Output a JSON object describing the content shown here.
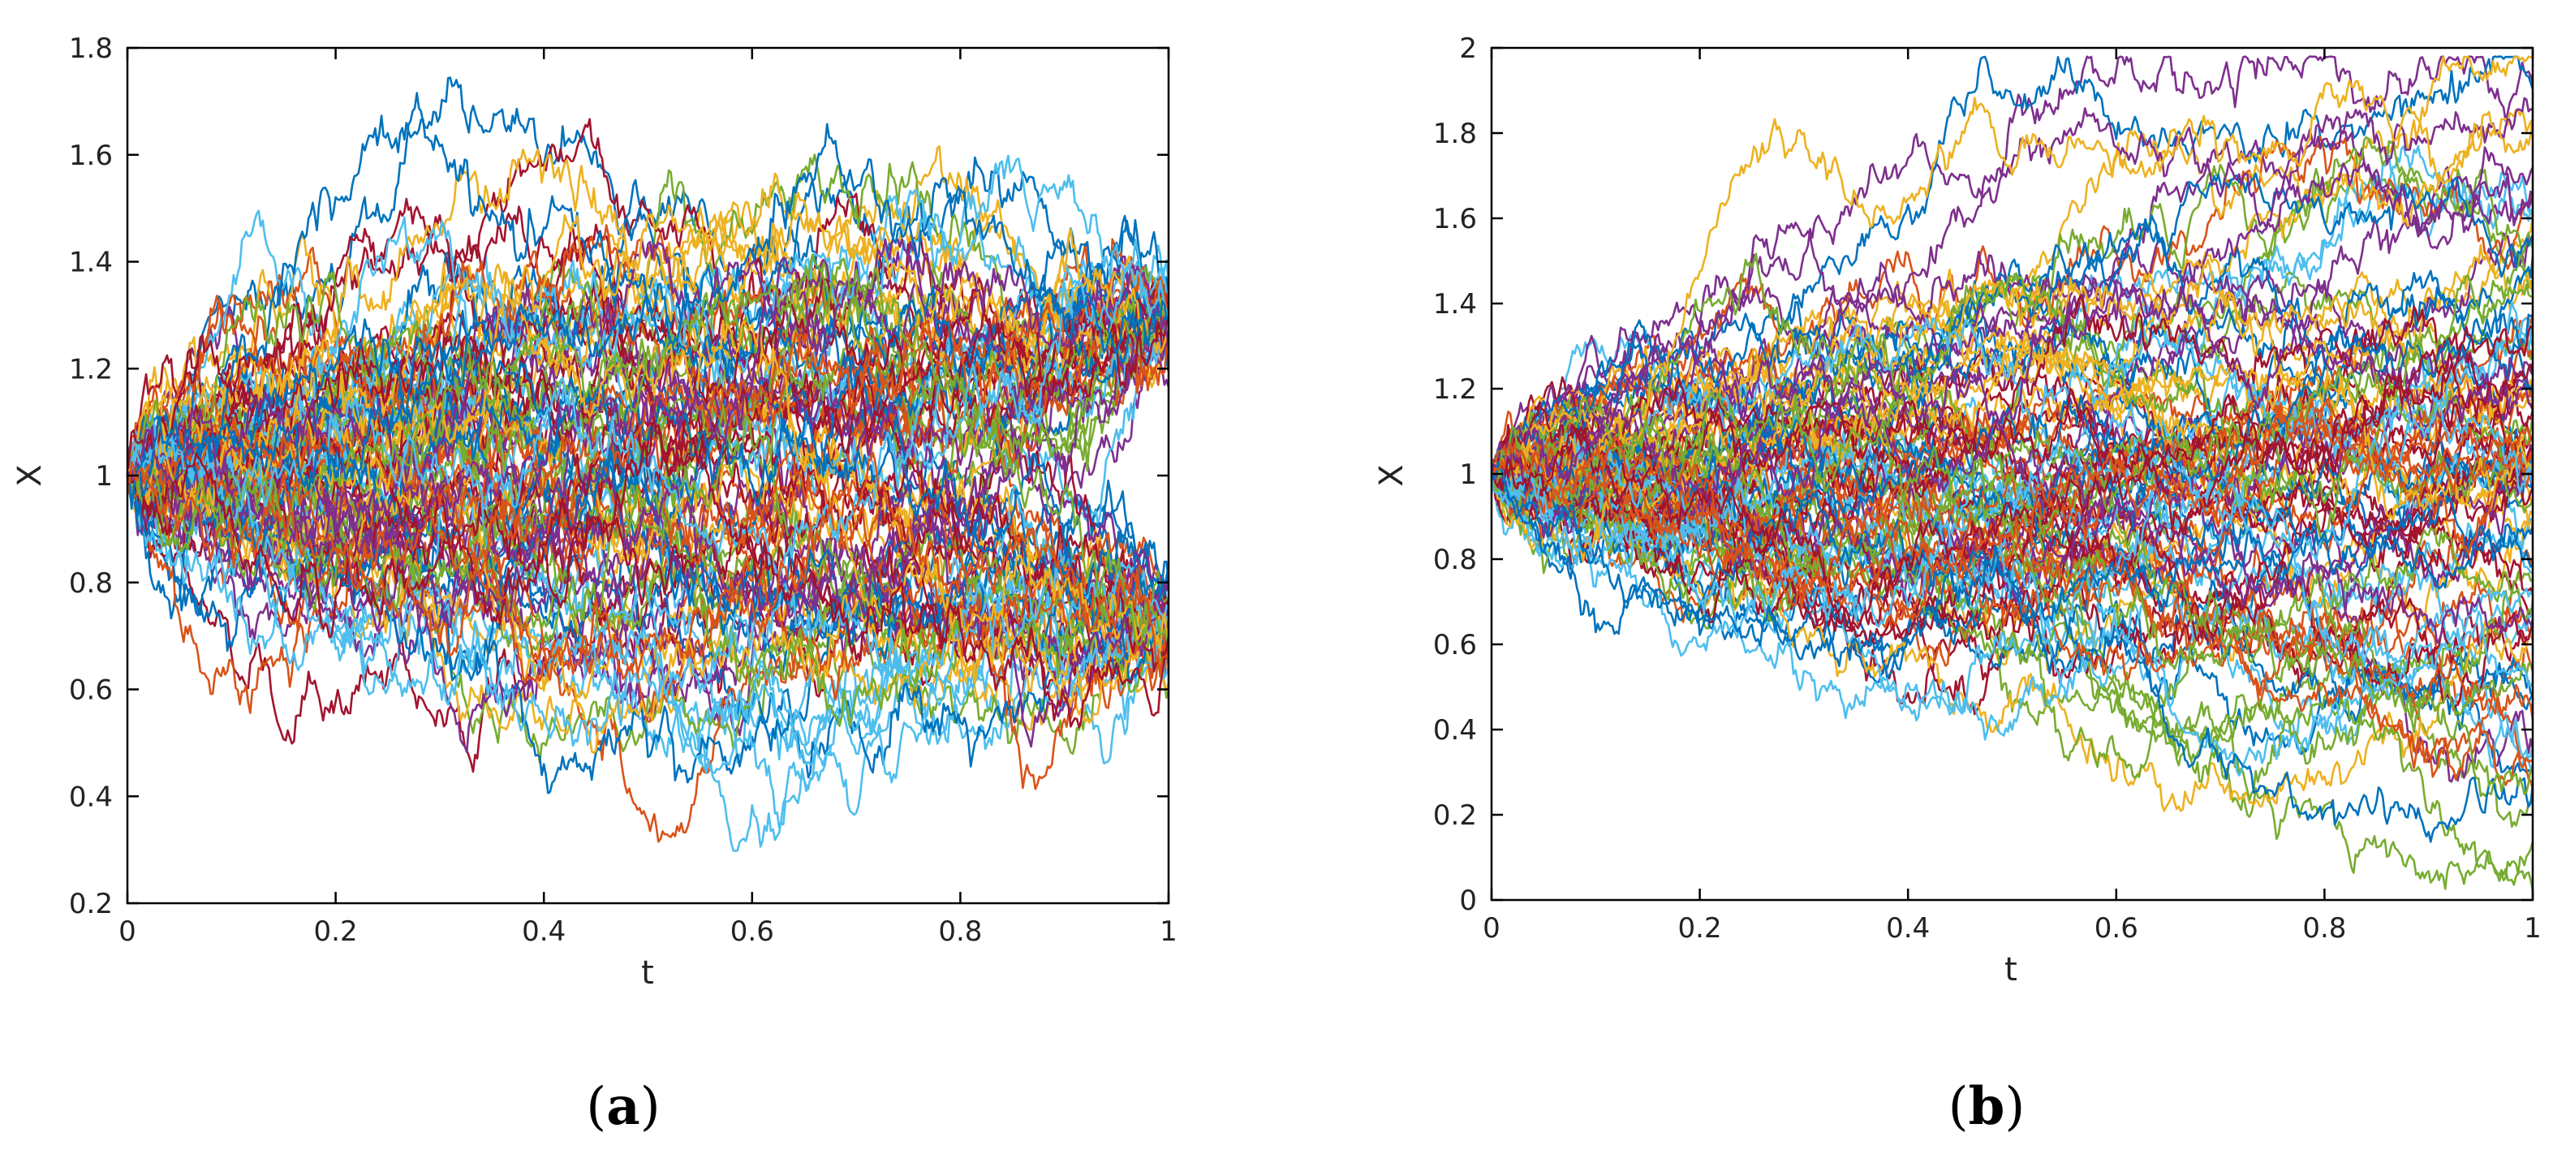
{
  "palette": [
    "#0072BD",
    "#D95319",
    "#EDB120",
    "#7E2F8E",
    "#77AC30",
    "#4DBEEE",
    "#A2142F"
  ],
  "chart_data": [
    {
      "type": "line",
      "panel_label": "a",
      "title": "",
      "xlabel": "t",
      "ylabel": "X",
      "xlim": [
        0,
        1
      ],
      "ylim": [
        0.2,
        1.8
      ],
      "x_ticks": [
        0,
        0.2,
        0.4,
        0.6,
        0.8,
        1
      ],
      "y_ticks": [
        0.2,
        0.4,
        0.6,
        0.8,
        1,
        1.2,
        1.4,
        1.6,
        1.8
      ],
      "x_tick_labels": [
        "0",
        "0.2",
        "0.4",
        "0.6",
        "0.8",
        "1"
      ],
      "y_tick_labels": [
        "0.2",
        "0.4",
        "0.6",
        "0.8",
        "1",
        "1.2",
        "1.4",
        "1.6",
        "1.8"
      ],
      "grid": false,
      "legend": "none",
      "n_paths": 100,
      "start_value": 1.0,
      "end_cluster_values": [
        0.7,
        1.3
      ],
      "observed_range": [
        0.23,
        1.8
      ]
    },
    {
      "type": "line",
      "panel_label": "b",
      "title": "",
      "xlabel": "t",
      "ylabel": "X",
      "xlim": [
        0,
        1
      ],
      "ylim": [
        0,
        2
      ],
      "x_ticks": [
        0,
        0.2,
        0.4,
        0.6,
        0.8,
        1
      ],
      "y_ticks": [
        0,
        0.2,
        0.4,
        0.6,
        0.8,
        1,
        1.2,
        1.4,
        1.6,
        1.8,
        2
      ],
      "x_tick_labels": [
        "0",
        "0.2",
        "0.4",
        "0.6",
        "0.8",
        "1"
      ],
      "y_tick_labels": [
        "0",
        "0.2",
        "0.4",
        "0.6",
        "0.8",
        "1",
        "1.2",
        "1.4",
        "1.6",
        "1.8",
        "2"
      ],
      "grid": false,
      "legend": "none",
      "n_paths": 100,
      "start_value": 1.0,
      "end_spread": [
        0.1,
        1.8
      ],
      "observed_range": [
        0.08,
        1.84
      ]
    }
  ]
}
